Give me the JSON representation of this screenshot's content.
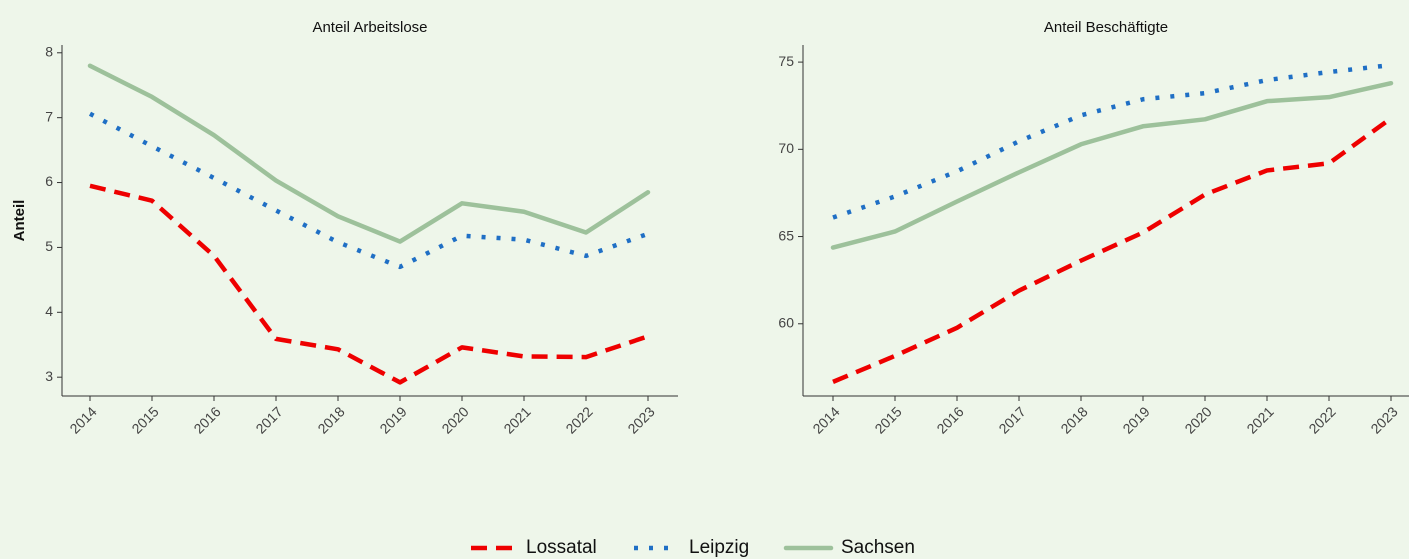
{
  "chart_data": [
    {
      "type": "line",
      "title": "Anteil Arbeitslose",
      "y_label": "Anteil",
      "categories": [
        "2014",
        "2015",
        "2016",
        "2017",
        "2018",
        "2019",
        "2020",
        "2021",
        "2022",
        "2023"
      ],
      "ylim": [
        2.71,
        8.12
      ],
      "yticks": [
        3,
        4,
        5,
        6,
        7,
        8
      ],
      "series": [
        {
          "name": "Lossatal",
          "color": "#ee0000",
          "dash": "dashed",
          "values": [
            5.95,
            5.72,
            4.87,
            3.59,
            3.43,
            2.92,
            3.46,
            3.32,
            3.31,
            3.63
          ]
        },
        {
          "name": "Leipzig",
          "color": "#1f6fc5",
          "dash": "dotted",
          "values": [
            7.06,
            6.56,
            6.07,
            5.57,
            5.08,
            4.7,
            5.18,
            5.12,
            4.87,
            5.21
          ]
        },
        {
          "name": "Sachsen",
          "color": "#9dc19b",
          "dash": "solid",
          "values": [
            7.8,
            7.32,
            6.73,
            6.03,
            5.48,
            5.09,
            5.68,
            5.55,
            5.23,
            5.85
          ]
        }
      ]
    },
    {
      "type": "line",
      "title": "Anteil Beschäftigte",
      "categories": [
        "2014",
        "2015",
        "2016",
        "2017",
        "2018",
        "2019",
        "2020",
        "2021",
        "2022",
        "2023"
      ],
      "ylim": [
        55.86,
        75.98
      ],
      "yticks": [
        60,
        65,
        70,
        75
      ],
      "series": [
        {
          "name": "Lossatal",
          "color": "#ee0000",
          "dash": "dashed",
          "values": [
            56.67,
            58.16,
            59.77,
            61.9,
            63.62,
            65.23,
            67.41,
            68.79,
            69.2,
            71.78
          ]
        },
        {
          "name": "Leipzig",
          "color": "#1f6fc5",
          "dash": "dotted",
          "values": [
            66.09,
            67.3,
            68.74,
            70.46,
            71.95,
            72.87,
            73.22,
            73.97,
            74.43,
            74.83
          ]
        },
        {
          "name": "Sachsen",
          "color": "#9dc19b",
          "dash": "solid",
          "values": [
            64.37,
            65.29,
            67.01,
            68.68,
            70.29,
            71.32,
            71.72,
            72.76,
            72.99,
            73.79
          ]
        }
      ]
    }
  ]
}
